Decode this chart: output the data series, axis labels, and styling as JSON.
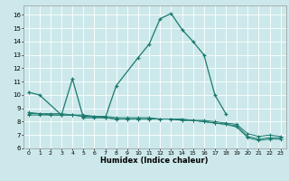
{
  "xlabel": "Humidex (Indice chaleur)",
  "bg_color": "#cce8ea",
  "grid_color": "#ffffff",
  "line_color": "#1a7a6e",
  "xlim": [
    -0.5,
    23.5
  ],
  "ylim": [
    6.0,
    16.7
  ],
  "yticks": [
    6,
    7,
    8,
    9,
    10,
    11,
    12,
    13,
    14,
    15,
    16
  ],
  "xticks": [
    0,
    1,
    2,
    3,
    4,
    5,
    6,
    7,
    8,
    9,
    10,
    11,
    12,
    13,
    14,
    15,
    16,
    17,
    18,
    19,
    20,
    21,
    22,
    23
  ],
  "curve1_x": [
    0,
    1,
    3,
    4,
    5,
    6,
    7,
    8,
    10,
    11,
    12,
    13,
    14,
    15,
    16,
    17,
    18
  ],
  "curve1_y": [
    10.2,
    10.0,
    8.5,
    11.2,
    8.3,
    8.3,
    8.3,
    10.7,
    12.8,
    13.8,
    15.7,
    16.1,
    14.9,
    14.0,
    13.0,
    10.0,
    8.6
  ],
  "curve2_x": [
    0,
    1,
    2,
    3,
    4,
    5,
    6,
    7,
    8,
    9,
    10,
    11,
    12,
    13,
    14,
    15,
    16,
    17,
    18,
    19,
    20,
    21,
    22,
    23
  ],
  "curve2_y": [
    8.5,
    8.5,
    8.5,
    8.5,
    8.5,
    8.4,
    8.4,
    8.3,
    8.2,
    8.2,
    8.2,
    8.2,
    8.2,
    8.2,
    8.1,
    8.1,
    8.0,
    7.9,
    7.8,
    7.6,
    6.8,
    6.6,
    6.7,
    6.7
  ],
  "curve3_x": [
    0,
    1,
    2,
    3,
    4,
    5,
    6,
    7,
    8,
    9,
    10,
    11,
    12,
    13,
    14,
    15,
    16,
    17,
    18,
    19,
    20,
    21,
    22,
    23
  ],
  "curve3_y": [
    8.6,
    8.6,
    8.5,
    8.5,
    8.5,
    8.4,
    8.4,
    8.3,
    8.2,
    8.2,
    8.2,
    8.2,
    8.2,
    8.2,
    8.1,
    8.1,
    8.0,
    7.9,
    7.8,
    7.7,
    6.9,
    6.7,
    6.8,
    6.8
  ],
  "curve4_x": [
    0,
    1,
    2,
    3,
    4,
    5,
    6,
    7,
    8,
    9,
    10,
    11,
    12,
    13,
    14,
    15,
    16,
    17,
    18,
    19,
    20,
    21,
    22,
    23
  ],
  "curve4_y": [
    8.7,
    8.6,
    8.6,
    8.6,
    8.5,
    8.5,
    8.4,
    8.4,
    8.3,
    8.3,
    8.3,
    8.3,
    8.2,
    8.2,
    8.2,
    8.1,
    8.1,
    8.0,
    7.9,
    7.8,
    7.1,
    6.9,
    7.0,
    6.9
  ]
}
